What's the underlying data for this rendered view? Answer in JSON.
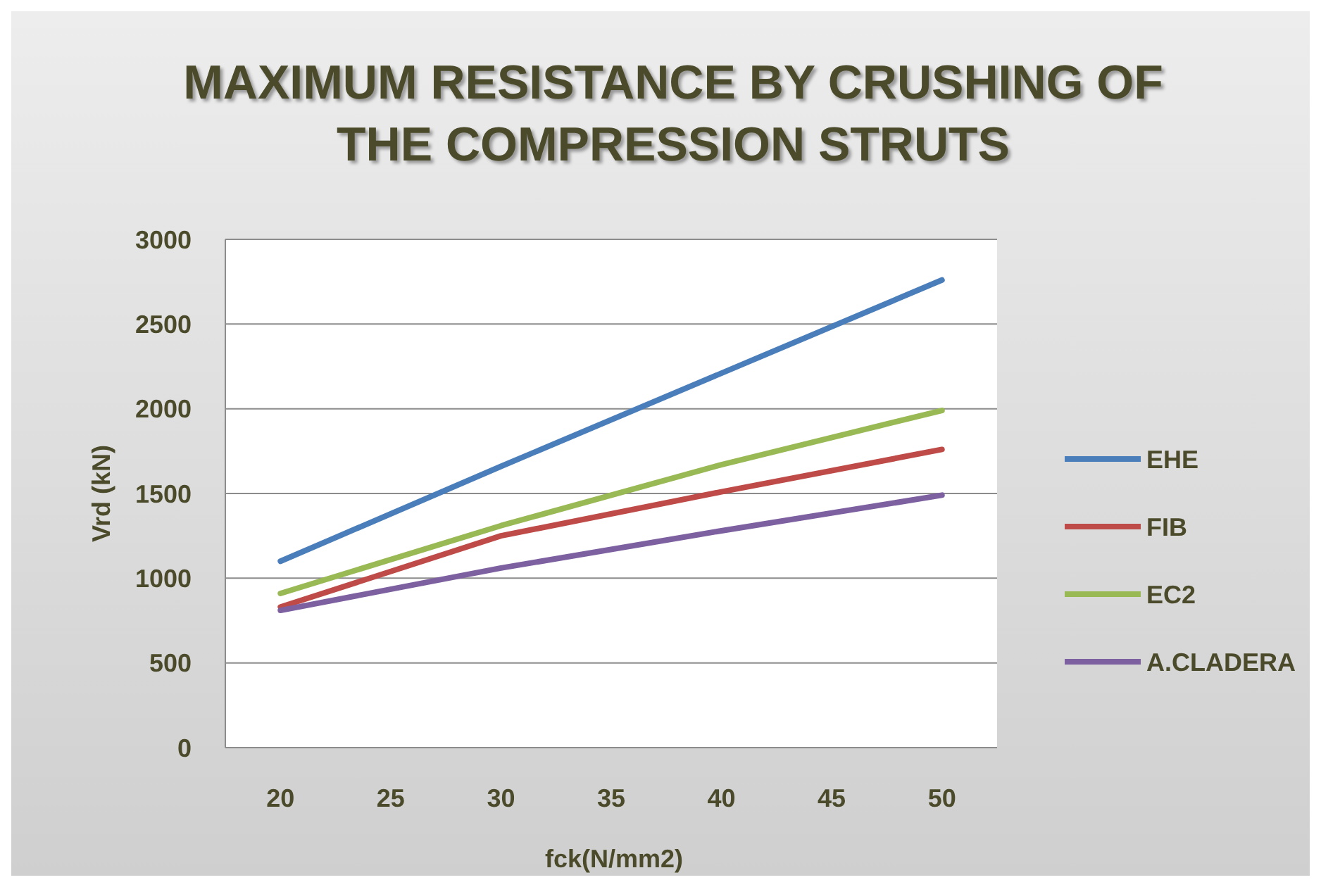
{
  "chart_data": {
    "type": "line",
    "title": "MAXIMUM RESISTANCE BY CRUSHING OF THE COMPRESSION STRUTS",
    "xlabel": "fck(N/mm2)",
    "ylabel": "Vrd (kN)",
    "x": [
      20,
      30,
      40,
      50
    ],
    "series": [
      {
        "name": "EHE",
        "color": "#4a7ebb",
        "values": [
          1100,
          1660,
          2210,
          2760
        ]
      },
      {
        "name": "FIB",
        "color": "#be4b48",
        "values": [
          830,
          1250,
          1510,
          1760
        ]
      },
      {
        "name": "EC2",
        "color": "#98b954",
        "values": [
          910,
          1310,
          1670,
          1990
        ]
      },
      {
        "name": "A.CLADERA",
        "color": "#7d60a0",
        "values": [
          810,
          1060,
          1280,
          1490
        ]
      }
    ],
    "xlim": [
      17.5,
      52.5
    ],
    "xticks": [
      20,
      25,
      30,
      35,
      40,
      45,
      50
    ],
    "ylim": [
      0,
      3000
    ],
    "yticks": [
      0,
      500,
      1000,
      1500,
      2000,
      2500,
      3000
    ],
    "grid": "y",
    "legend": "right",
    "marker": "none",
    "line_style": "solid"
  }
}
